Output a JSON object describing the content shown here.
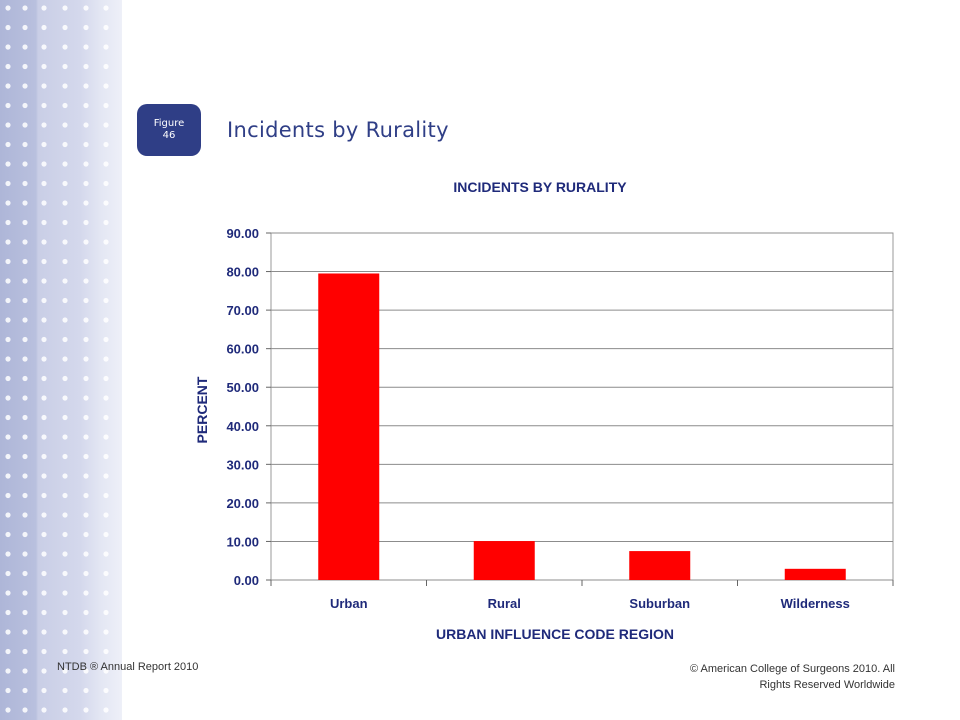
{
  "slide": {
    "figure_label": "Figure",
    "figure_number": "46",
    "title": "Incidents by Rurality"
  },
  "chart_data": {
    "type": "bar",
    "title": "INCIDENTS BY RURALITY",
    "xlabel": "URBAN INFLUENCE CODE REGION",
    "ylabel": "PERCENT",
    "categories": [
      "Urban",
      "Rural",
      "Suburban",
      "Wilderness"
    ],
    "values": [
      79.5,
      10.1,
      7.5,
      2.9
    ],
    "ylim": [
      0,
      90
    ],
    "yticks": [
      "0.00",
      "10.00",
      "20.00",
      "30.00",
      "40.00",
      "50.00",
      "60.00",
      "70.00",
      "80.00",
      "90.00"
    ],
    "bar_color": "#ff0000",
    "grid": true
  },
  "footer": {
    "left": "NTDB ® Annual Report 2010",
    "right_line1": "© American College of Surgeons 2010.  All",
    "right_line2": "Rights Reserved Worldwide"
  },
  "colors": {
    "accent": "#2f3e86",
    "axis_text": "#1f2a7a"
  }
}
